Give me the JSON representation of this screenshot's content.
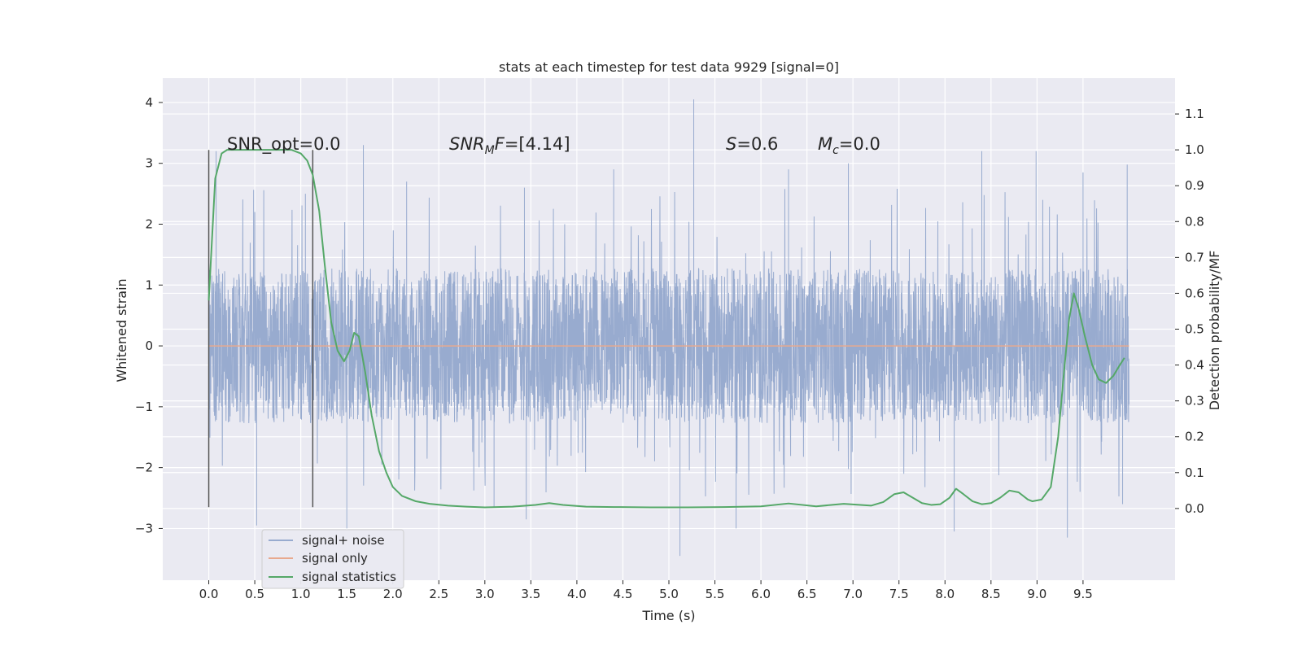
{
  "chart_data": {
    "type": "line",
    "title": "stats at each timestep for test data 9929 [signal=0]",
    "xlabel": "Time (s)",
    "ylabel": "Whitened strain",
    "y2label": "Detection probability/MF",
    "xlim": [
      -0.5,
      10.5
    ],
    "ylim": [
      -3.85,
      4.4
    ],
    "y2lim": [
      -0.2,
      1.2
    ],
    "xticks": [
      0.0,
      0.5,
      1.0,
      1.5,
      2.0,
      2.5,
      3.0,
      3.5,
      4.0,
      4.5,
      5.0,
      5.5,
      6.0,
      6.5,
      7.0,
      7.5,
      8.0,
      8.5,
      9.0,
      9.5
    ],
    "xtick_labels": [
      "0.0",
      "0.5",
      "1.0",
      "1.5",
      "2.0",
      "2.5",
      "3.0",
      "3.5",
      "4.0",
      "4.5",
      "5.0",
      "5.5",
      "6.0",
      "6.5",
      "7.0",
      "7.5",
      "8.0",
      "8.5",
      "9.0",
      "9.5"
    ],
    "yticks": [
      -3,
      -2,
      -1,
      0,
      1,
      2,
      3,
      4
    ],
    "ytick_labels": [
      "−3",
      "−2",
      "−1",
      "0",
      "1",
      "2",
      "3",
      "4"
    ],
    "y2ticks": [
      0.0,
      0.1,
      0.2,
      0.3,
      0.4,
      0.5,
      0.6,
      0.7,
      0.8,
      0.9,
      1.0,
      1.1
    ],
    "y2tick_labels": [
      "0.0",
      "0.1",
      "0.2",
      "0.3",
      "0.4",
      "0.5",
      "0.6",
      "0.7",
      "0.8",
      "0.9",
      "1.0",
      "1.1"
    ],
    "grid": true,
    "legend_position": "lower-left",
    "annotations": {
      "snr_opt": "SNR_opt=0.0",
      "snr_mf_var": "SNR",
      "snr_mf_sub": "M",
      "snr_mf_var2": "F",
      "snr_mf_value": "=[4.14]",
      "s_var": "S",
      "s_value": "=0.6",
      "mc_var": "M",
      "mc_sub": "c",
      "mc_value": "=0.0"
    },
    "vertical_markers": {
      "x": [
        0.0,
        1.13
      ],
      "y_range": [
        -2.65,
        3.22
      ],
      "color": "#555555"
    },
    "series": [
      {
        "name": "signal+ noise",
        "color": "#98abcf",
        "axis": "left",
        "x_range": [
          0.0,
          10.0
        ],
        "typical_range": [
          -1.5,
          1.5
        ],
        "peaks": [
          {
            "x": 0.08,
            "y": 3.2
          },
          {
            "x": 0.5,
            "y": 2.2
          },
          {
            "x": 1.05,
            "y": 2.5
          },
          {
            "x": 1.68,
            "y": 3.3
          },
          {
            "x": 2.15,
            "y": 2.7
          },
          {
            "x": 3.43,
            "y": 2.6
          },
          {
            "x": 4.4,
            "y": 2.9
          },
          {
            "x": 5.27,
            "y": 4.05
          },
          {
            "x": 6.3,
            "y": 2.9
          },
          {
            "x": 6.95,
            "y": 3.0
          },
          {
            "x": 8.4,
            "y": 3.2
          },
          {
            "x": 8.99,
            "y": 3.2
          },
          {
            "x": 9.5,
            "y": 2.85
          },
          {
            "x": 9.98,
            "y": 2.98
          }
        ],
        "troughs": [
          {
            "x": 0.52,
            "y": -2.95
          },
          {
            "x": 1.5,
            "y": -3.0
          },
          {
            "x": 3.1,
            "y": -2.65
          },
          {
            "x": 3.45,
            "y": -2.85
          },
          {
            "x": 5.12,
            "y": -3.45
          },
          {
            "x": 5.73,
            "y": -3.0
          },
          {
            "x": 8.1,
            "y": -3.05
          },
          {
            "x": 9.33,
            "y": -3.15
          },
          {
            "x": 9.93,
            "y": -2.6
          }
        ]
      },
      {
        "name": "signal only",
        "color": "#e8a98e",
        "axis": "left",
        "x": [
          0.0,
          10.0
        ],
        "y": [
          0.0,
          0.0
        ]
      },
      {
        "name": "signal statistics",
        "color": "#55a868",
        "axis": "right",
        "x": [
          0.0,
          0.07,
          0.14,
          0.2,
          0.3,
          0.45,
          0.6,
          0.75,
          0.9,
          1.0,
          1.07,
          1.13,
          1.2,
          1.26,
          1.33,
          1.4,
          1.47,
          1.53,
          1.58,
          1.63,
          1.7,
          1.77,
          1.85,
          1.93,
          2.0,
          2.1,
          2.25,
          2.4,
          2.6,
          2.8,
          3.0,
          3.3,
          3.55,
          3.7,
          3.85,
          4.1,
          4.4,
          4.8,
          5.2,
          5.6,
          6.0,
          6.3,
          6.6,
          6.9,
          7.2,
          7.33,
          7.45,
          7.55,
          7.65,
          7.75,
          7.85,
          7.95,
          8.05,
          8.12,
          8.2,
          8.3,
          8.4,
          8.5,
          8.6,
          8.7,
          8.8,
          8.9,
          8.95,
          9.05,
          9.15,
          9.23,
          9.3,
          9.35,
          9.4,
          9.45,
          9.52,
          9.6,
          9.67,
          9.75,
          9.83,
          9.9,
          9.95
        ],
        "y": [
          0.58,
          0.92,
          0.99,
          1.0,
          1.0,
          1.0,
          1.0,
          1.0,
          1.0,
          0.99,
          0.97,
          0.93,
          0.83,
          0.68,
          0.52,
          0.44,
          0.41,
          0.44,
          0.49,
          0.48,
          0.38,
          0.26,
          0.16,
          0.1,
          0.06,
          0.035,
          0.02,
          0.013,
          0.008,
          0.005,
          0.003,
          0.005,
          0.01,
          0.015,
          0.01,
          0.005,
          0.004,
          0.003,
          0.003,
          0.004,
          0.006,
          0.014,
          0.006,
          0.013,
          0.008,
          0.018,
          0.04,
          0.045,
          0.03,
          0.015,
          0.01,
          0.012,
          0.03,
          0.055,
          0.04,
          0.02,
          0.012,
          0.015,
          0.03,
          0.05,
          0.045,
          0.025,
          0.02,
          0.025,
          0.06,
          0.2,
          0.4,
          0.53,
          0.6,
          0.56,
          0.48,
          0.4,
          0.36,
          0.35,
          0.37,
          0.4,
          0.42
        ]
      }
    ]
  }
}
